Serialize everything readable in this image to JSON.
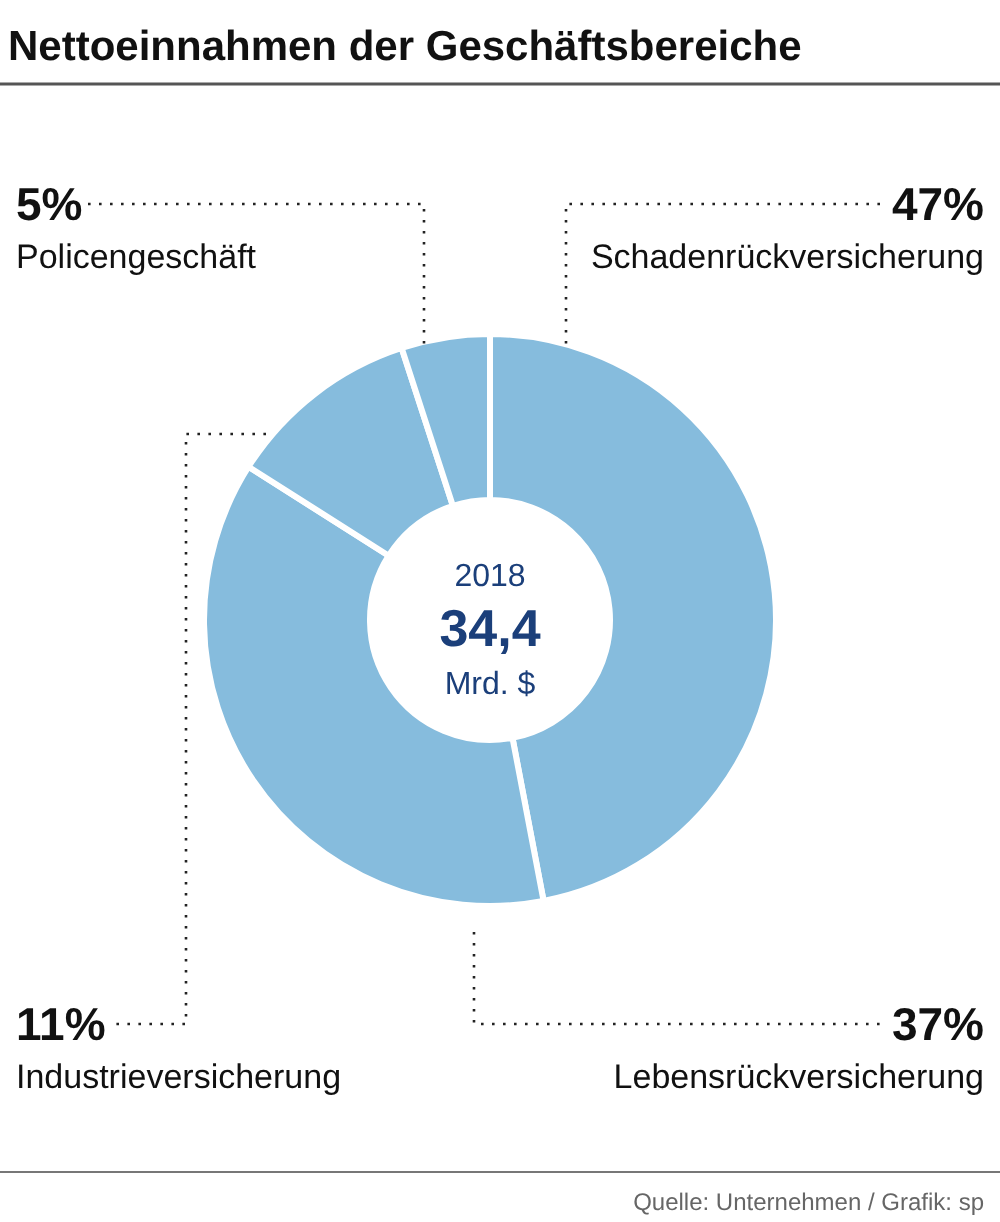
{
  "chart_data": {
    "type": "donut",
    "title": "Nettoeinnahmen der Geschäftsbereiche",
    "categories": [
      "Schadenrückversicherung",
      "Lebensrückversicherung",
      "Industrieversicherung",
      "Policengeschäft"
    ],
    "values": [
      47,
      37,
      11,
      5
    ],
    "value_labels": [
      "47%",
      "37%",
      "11%",
      "5%"
    ],
    "colors": [
      "#86bcdd",
      "#86bcdd",
      "#86bcdd",
      "#86bcdd"
    ],
    "annotations": [
      "2018",
      "34,4",
      "Mrd. $",
      "Quelle: Unternehmen / Grafik: sp"
    ]
  }
}
